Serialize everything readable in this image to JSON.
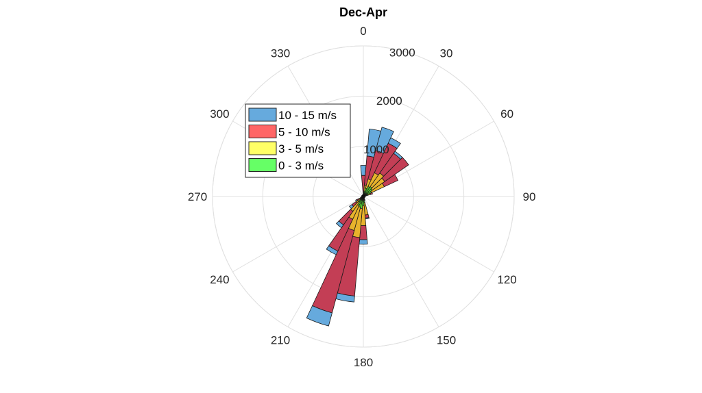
{
  "chart_data": {
    "type": "polar-stacked-bar",
    "title": "Dec-Apr",
    "angle_ticks": [
      "0",
      "30",
      "60",
      "90",
      "120",
      "150",
      "180",
      "210",
      "240",
      "270",
      "300",
      "330"
    ],
    "angle_tick_values": [
      0,
      30,
      60,
      90,
      120,
      150,
      180,
      210,
      240,
      270,
      300,
      330
    ],
    "radial_ticks": [
      "1000",
      "2000",
      "3000"
    ],
    "radial_tick_values": [
      1000,
      2000,
      3000
    ],
    "rmax": 3000,
    "grid": true,
    "legend_position": "top-left",
    "directions": [
      0,
      10,
      20,
      30,
      40,
      50,
      60,
      70,
      80,
      90,
      100,
      110,
      120,
      130,
      140,
      150,
      160,
      170,
      180,
      190,
      200,
      210,
      220,
      230,
      240,
      250,
      260,
      270,
      280,
      290,
      300,
      310,
      320,
      330,
      340,
      350
    ],
    "series": [
      {
        "name": "0 - 3 m/s",
        "color": "#66ff66",
        "values": [
          50,
          110,
          170,
          220,
          240,
          220,
          180,
          90,
          40,
          20,
          20,
          20,
          20,
          20,
          20,
          20,
          40,
          120,
          180,
          240,
          220,
          200,
          140,
          80,
          60,
          40,
          30,
          20,
          20,
          20,
          20,
          30,
          30,
          30,
          30,
          40
        ]
      },
      {
        "name": "3 - 5 m/s",
        "color": "#ffff66",
        "values": [
          30,
          120,
          190,
          300,
          330,
          300,
          280,
          60,
          10,
          0,
          0,
          0,
          0,
          0,
          0,
          0,
          40,
          250,
          400,
          580,
          480,
          300,
          220,
          100,
          40,
          20,
          0,
          0,
          0,
          0,
          0,
          0,
          0,
          0,
          0,
          0
        ]
      },
      {
        "name": "5 - 10 m/s",
        "color": "#ff6666",
        "values": [
          340,
          580,
          590,
          650,
          480,
          580,
          300,
          40,
          0,
          0,
          0,
          0,
          0,
          0,
          0,
          0,
          0,
          60,
          280,
          1170,
          1700,
          700,
          330,
          100,
          40,
          0,
          0,
          0,
          0,
          0,
          0,
          0,
          0,
          0,
          0,
          0
        ]
      },
      {
        "name": "10 - 15 m/s",
        "color": "#66aadd",
        "values": [
          200,
          540,
          480,
          120,
          50,
          0,
          0,
          0,
          0,
          0,
          0,
          0,
          0,
          0,
          0,
          0,
          0,
          20,
          90,
          120,
          270,
          80,
          70,
          60,
          30,
          0,
          0,
          0,
          0,
          0,
          0,
          0,
          0,
          0,
          0,
          0
        ]
      }
    ]
  }
}
